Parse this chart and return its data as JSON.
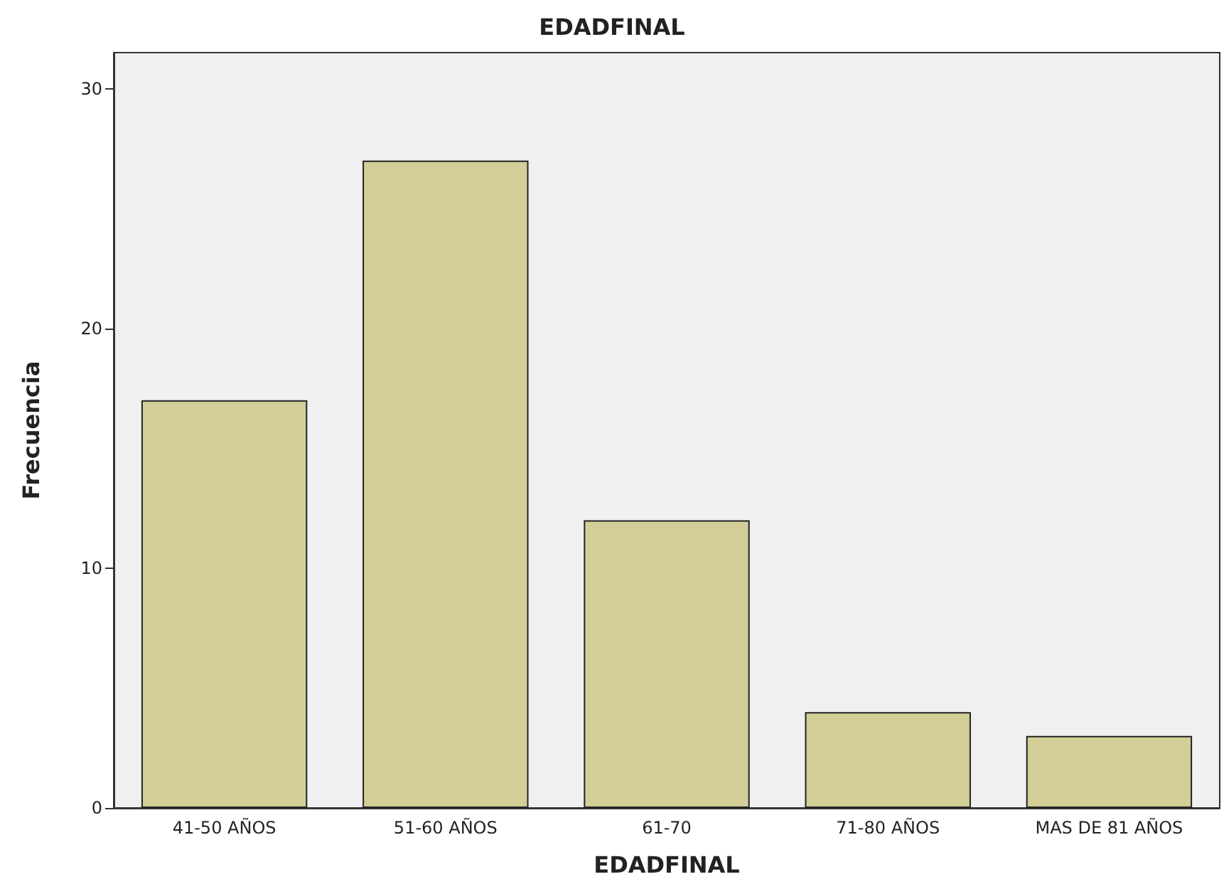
{
  "chart_data": {
    "type": "bar",
    "title": "EDADFINAL",
    "xlabel": "EDADFINAL",
    "ylabel": "Frecuencia",
    "categories": [
      "41-50 AÑOS",
      "51-60 AÑOS",
      "61-70",
      "71-80 AÑOS",
      "MAS DE 81 AÑOS"
    ],
    "values": [
      17,
      27,
      12,
      4,
      3
    ],
    "color": "#d3ce97",
    "ylim": [
      0,
      31.5
    ],
    "yticks": [
      0,
      10,
      20,
      30
    ],
    "grid": false
  }
}
